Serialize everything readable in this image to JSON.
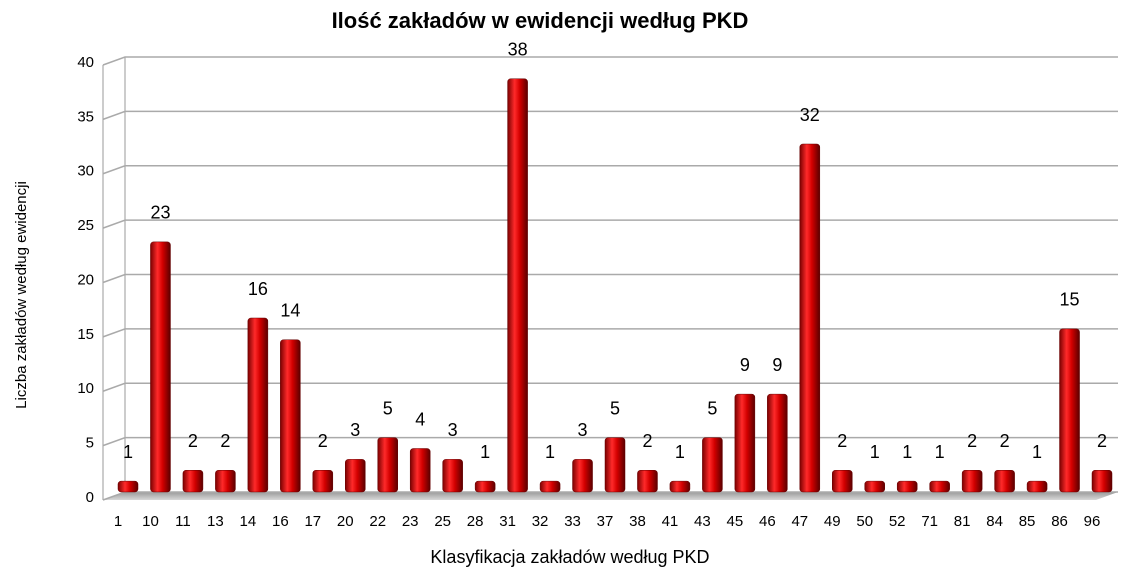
{
  "chart_data": {
    "type": "bar",
    "title": "Ilość zakładów w ewidencji według PKD",
    "x_label": "Klasyfikacja zakładów według PKD",
    "y_label": "Liczba zakładów według ewidencji",
    "categories": [
      "1",
      "10",
      "11",
      "13",
      "14",
      "16",
      "17",
      "20",
      "22",
      "23",
      "25",
      "28",
      "31",
      "32",
      "33",
      "37",
      "38",
      "41",
      "43",
      "45",
      "46",
      "47",
      "49",
      "50",
      "52",
      "71",
      "81",
      "84",
      "85",
      "86",
      "96"
    ],
    "values": [
      1,
      23,
      2,
      2,
      16,
      14,
      2,
      3,
      5,
      4,
      3,
      1,
      38,
      1,
      3,
      5,
      2,
      1,
      5,
      9,
      9,
      32,
      2,
      1,
      1,
      1,
      2,
      2,
      1,
      15,
      2
    ],
    "color": "#cc0000",
    "ylim": [
      0,
      40
    ],
    "yticks": [
      0,
      5,
      10,
      15,
      20,
      25,
      30,
      35,
      40
    ],
    "grid": true
  }
}
